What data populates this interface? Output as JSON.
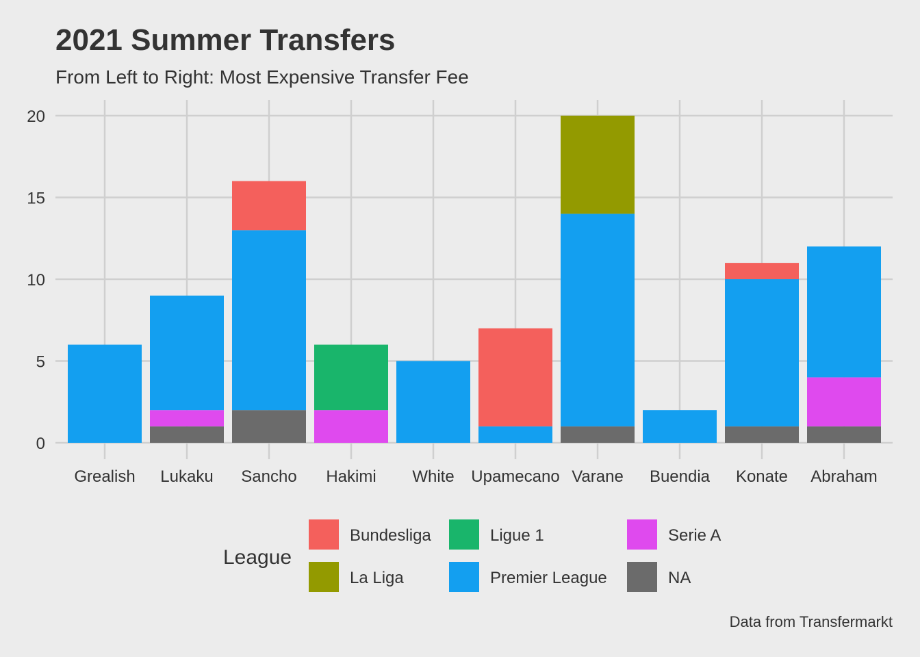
{
  "chart_data": {
    "type": "bar",
    "stacked": true,
    "title": "2021 Summer Transfers",
    "subtitle": "From Left to Right: Most Expensive Transfer Fee",
    "caption": "Data from Transfermarkt",
    "xlabel": "",
    "ylabel": "",
    "ylim": [
      0,
      20
    ],
    "yticks": [
      0,
      5,
      10,
      15,
      20
    ],
    "grid": true,
    "legend_position": "bottom",
    "legend_title": "League",
    "categories": [
      "Grealish",
      "Lukaku",
      "Sancho",
      "Hakimi",
      "White",
      "Upamecano",
      "Varane",
      "Buendia",
      "Konate",
      "Abraham"
    ],
    "series": [
      {
        "name": "NA",
        "color": "#6b6b6b",
        "values": [
          0,
          1,
          2,
          0,
          0,
          0,
          1,
          0,
          1,
          1
        ]
      },
      {
        "name": "Serie A",
        "color": "#df4aee",
        "values": [
          0,
          1,
          0,
          2,
          0,
          0,
          0,
          0,
          0,
          3
        ]
      },
      {
        "name": "Ligue 1",
        "color": "#19b56b",
        "values": [
          0,
          0,
          0,
          4,
          0,
          0,
          0,
          0,
          0,
          0
        ]
      },
      {
        "name": "Premier League",
        "color": "#139ff0",
        "values": [
          6,
          7,
          11,
          0,
          5,
          1,
          13,
          2,
          9,
          8
        ]
      },
      {
        "name": "Bundesliga",
        "color": "#f4605c",
        "values": [
          0,
          0,
          3,
          0,
          0,
          6,
          0,
          0,
          1,
          0
        ]
      },
      {
        "name": "La Liga",
        "color": "#939a00",
        "values": [
          0,
          0,
          0,
          0,
          0,
          0,
          6,
          0,
          0,
          0
        ]
      }
    ],
    "legend_order": [
      "Bundesliga",
      "Ligue 1",
      "Serie A",
      "La Liga",
      "Premier League",
      "NA"
    ]
  }
}
